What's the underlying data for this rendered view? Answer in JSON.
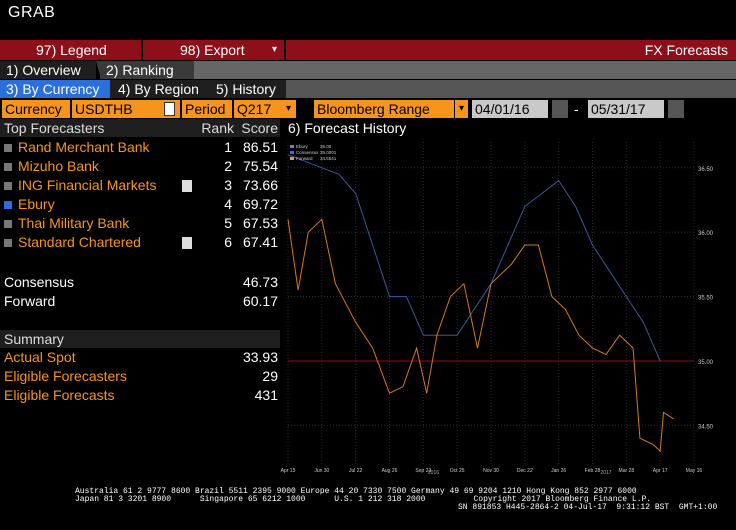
{
  "top": {
    "grab": "GRAB"
  },
  "redbar": {
    "legend_label": "97) Legend",
    "export_label": "98) Export",
    "export_arrow": "▾",
    "title": "FX Forecasts"
  },
  "tabs1": [
    {
      "label": "1) Overview"
    },
    {
      "label": "2) Ranking"
    }
  ],
  "tabs2": [
    {
      "label": "3) By Currency"
    },
    {
      "label": "4) By Region"
    },
    {
      "label": "5) History"
    }
  ],
  "controls": {
    "currency_label": "Currency",
    "currency_value": "USDTHB",
    "period_label": "Period",
    "period_value": "Q217",
    "range_value": "Bloomberg Range",
    "start_date": "04/01/16",
    "date_sep": "-",
    "end_date": "05/31/17"
  },
  "table": {
    "header_name": "Top Forecasters",
    "header_rank": "Rank",
    "header_score": "Score",
    "rows": [
      {
        "name": "Rand Merchant Bank",
        "rank": "1",
        "score": "86.51",
        "checked": false,
        "doc": false
      },
      {
        "name": "Mizuho Bank",
        "rank": "2",
        "score": "75.54",
        "checked": false,
        "doc": false
      },
      {
        "name": "ING Financial Markets",
        "rank": "3",
        "score": "73.66",
        "checked": false,
        "doc": true
      },
      {
        "name": "Ebury",
        "rank": "4",
        "score": "69.72",
        "checked": true,
        "doc": false
      },
      {
        "name": "Thai Military Bank",
        "rank": "5",
        "score": "67.53",
        "checked": false,
        "doc": false
      },
      {
        "name": "Standard Chartered",
        "rank": "6",
        "score": "67.41",
        "checked": false,
        "doc": true
      }
    ],
    "consensus_label": "Consensus",
    "consensus_value": "46.73",
    "forward_label": "Forward",
    "forward_value": "60.17"
  },
  "summary": {
    "title": "Summary",
    "items": [
      {
        "label": "Actual Spot",
        "value": "33.93"
      },
      {
        "label": "Eligible Forecasters",
        "value": "29"
      },
      {
        "label": "Eligible Forecasts",
        "value": "431"
      }
    ]
  },
  "chart_title": "6) Forecast History",
  "chart_data": {
    "type": "line",
    "legend": [
      {
        "name": "Ebury",
        "value": "35.00",
        "color": "#8a6fd1"
      },
      {
        "name": "Consensus",
        "value": "35.0001",
        "color": "#3a6fd8"
      },
      {
        "name": "Forward",
        "value": "34.5541",
        "color": "#f7941d"
      }
    ],
    "x_tick_labels": [
      "Apr 15",
      "Jun 30",
      "Jul 22",
      "Aug 26",
      "Sep 23",
      "Oct 25",
      "Nov 30",
      "Dec 22",
      "Jan 26",
      "Feb 28",
      "Mar 28",
      "Apr 17",
      "May 16"
    ],
    "year_labels": [
      "2016",
      "2017"
    ],
    "y_ticks": [
      "36.50",
      "36.00",
      "35.50",
      "35.00",
      "34.50"
    ],
    "ylim": [
      34.2,
      36.7
    ],
    "series": [
      {
        "name": "Consensus",
        "color": "#2f5c9e",
        "points": [
          [
            0,
            36.6
          ],
          [
            0.5,
            36.55
          ],
          [
            1,
            36.5
          ],
          [
            1.5,
            36.45
          ],
          [
            2,
            36.3
          ],
          [
            2.5,
            35.9
          ],
          [
            3,
            35.5
          ],
          [
            3.5,
            35.5
          ],
          [
            4,
            35.2
          ],
          [
            4.5,
            35.2
          ],
          [
            5,
            35.2
          ],
          [
            5.5,
            35.4
          ],
          [
            6,
            35.6
          ],
          [
            6.5,
            35.9
          ],
          [
            7,
            36.2
          ],
          [
            7.5,
            36.3
          ],
          [
            8,
            36.4
          ],
          [
            8.5,
            36.2
          ],
          [
            9,
            35.9
          ],
          [
            9.5,
            35.7
          ],
          [
            10,
            35.5
          ],
          [
            10.5,
            35.3
          ],
          [
            11,
            35.0
          ]
        ]
      },
      {
        "name": "Forward",
        "color": "#d9781a",
        "points": [
          [
            0,
            36.1
          ],
          [
            0.3,
            35.55
          ],
          [
            0.6,
            36.0
          ],
          [
            1,
            36.1
          ],
          [
            1.4,
            35.6
          ],
          [
            2,
            35.3
          ],
          [
            2.5,
            35.1
          ],
          [
            3,
            34.75
          ],
          [
            3.4,
            34.8
          ],
          [
            3.8,
            35.1
          ],
          [
            4.1,
            34.75
          ],
          [
            4.4,
            35.2
          ],
          [
            4.8,
            35.5
          ],
          [
            5.2,
            35.6
          ],
          [
            5.6,
            35.1
          ],
          [
            6,
            35.6
          ],
          [
            6.6,
            35.75
          ],
          [
            7,
            35.9
          ],
          [
            7.4,
            35.9
          ],
          [
            7.8,
            35.5
          ],
          [
            8.2,
            35.4
          ],
          [
            8.6,
            35.2
          ],
          [
            9,
            35.1
          ],
          [
            9.4,
            35.05
          ],
          [
            9.8,
            35.2
          ],
          [
            10.2,
            35.1
          ],
          [
            10.4,
            34.4
          ],
          [
            10.8,
            34.35
          ],
          [
            11.0,
            34.3
          ],
          [
            11.1,
            34.6
          ],
          [
            11.4,
            34.55
          ]
        ]
      }
    ],
    "spot_line": 35.0
  },
  "footer": {
    "line1": "Australia 61 2 9777 8600 Brazil 5511 2395 9000 Europe 44 20 7330 7500 Germany 49 69 9204 1210 Hong Kong 852 2977 6000",
    "line2a": "Japan 81 3 3201 8900      Singapore 65 6212 1000      U.S. 1 212 318 2000          Copyright 2017 Bloomberg Finance L.P.",
    "line2b": "SN 891853 H445-2864-2 04-Jul-17  9:31:12 BST  GMT+1:00"
  }
}
